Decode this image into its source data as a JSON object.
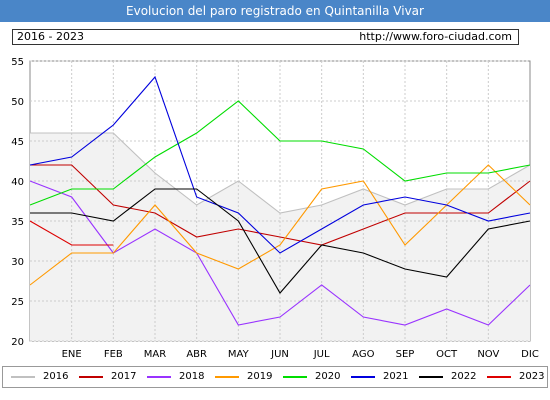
{
  "header": {
    "title": "Evolucion del paro registrado en Quintanilla Vivar",
    "period": "2016 - 2023",
    "url": "http://www.foro-ciudad.com"
  },
  "chart_data": {
    "type": "line",
    "categories": [
      "",
      "ENE",
      "FEB",
      "MAR",
      "ABR",
      "MAY",
      "JUN",
      "JUL",
      "AGO",
      "SEP",
      "OCT",
      "NOV",
      "DIC"
    ],
    "ylim": [
      20,
      55
    ],
    "yticks": [
      20,
      25,
      30,
      35,
      40,
      45,
      50,
      55
    ],
    "grid": true,
    "legend_position": "bottom",
    "series": [
      {
        "name": "2016",
        "color": "#c0c0c0",
        "fill": "#f2f2f2",
        "values": [
          46,
          46,
          46,
          41,
          37,
          40,
          36,
          37,
          39,
          37,
          39,
          39,
          42
        ]
      },
      {
        "name": "2017",
        "color": "#c00000",
        "values": [
          42,
          42,
          37,
          36,
          33,
          34,
          33,
          32,
          34,
          36,
          36,
          36,
          40
        ]
      },
      {
        "name": "2018",
        "color": "#9933ff",
        "values": [
          40,
          38,
          31,
          34,
          31,
          22,
          23,
          27,
          23,
          22,
          24,
          22,
          27
        ]
      },
      {
        "name": "2019",
        "color": "#ff9900",
        "values": [
          27,
          31,
          31,
          37,
          31,
          29,
          32,
          39,
          40,
          32,
          37,
          42,
          37
        ]
      },
      {
        "name": "2020",
        "color": "#00dd00",
        "values": [
          37,
          39,
          39,
          43,
          46,
          50,
          45,
          45,
          44,
          40,
          41,
          41,
          42
        ]
      },
      {
        "name": "2021",
        "color": "#0000dd",
        "values": [
          42,
          43,
          47,
          53,
          38,
          36,
          31,
          34,
          37,
          38,
          37,
          35,
          36
        ]
      },
      {
        "name": "2022",
        "color": "#000000",
        "values": [
          36,
          36,
          35,
          39,
          39,
          35,
          26,
          32,
          31,
          29,
          28,
          34,
          35
        ]
      },
      {
        "name": "2023",
        "color": "#dd0000",
        "values": [
          35,
          32,
          32,
          null,
          null,
          null,
          null,
          null,
          null,
          null,
          null,
          null,
          null
        ]
      }
    ]
  }
}
